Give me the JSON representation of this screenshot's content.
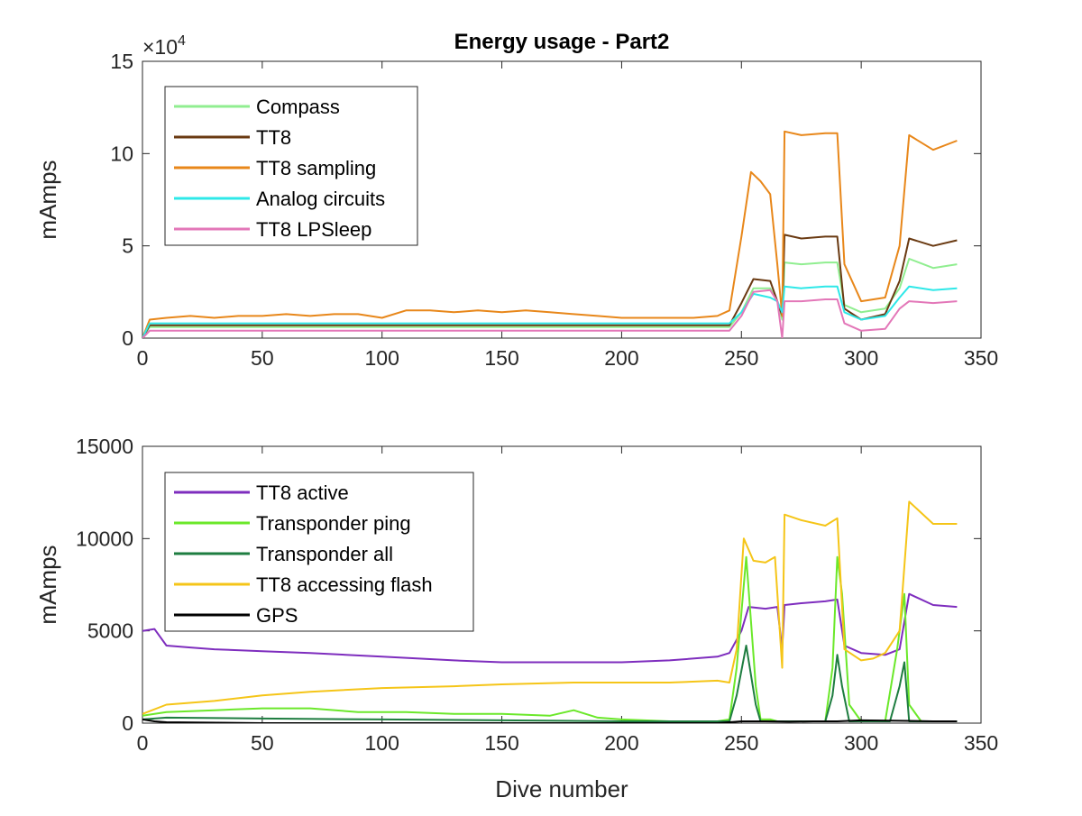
{
  "chart_data": [
    {
      "type": "line",
      "title": "Energy usage - Part2",
      "xlabel": "",
      "ylabel": "mAmps",
      "xlim": [
        0,
        350
      ],
      "ylim": [
        0,
        150000
      ],
      "y_exponent_label": "×10",
      "y_exponent_power": "4",
      "xticks": [
        "0",
        "50",
        "100",
        "150",
        "200",
        "250",
        "300",
        "350"
      ],
      "yticks": [
        "0",
        "5",
        "10",
        "15"
      ],
      "legend_position": "top-left",
      "grid": false,
      "series": [
        {
          "name": "Compass",
          "color": "#90EE90",
          "x": [
            0,
            3,
            245,
            250,
            255,
            262,
            265,
            267,
            268,
            275,
            285,
            290,
            293,
            300,
            310,
            316,
            320,
            330,
            340
          ],
          "y": [
            0,
            6000,
            6000,
            14000,
            27000,
            27000,
            20000,
            10000,
            41000,
            40000,
            41000,
            41000,
            18000,
            14000,
            16000,
            27000,
            43000,
            38000,
            40000
          ]
        },
        {
          "name": "TT8",
          "color": "#6A3A12",
          "x": [
            0,
            3,
            245,
            250,
            255,
            262,
            265,
            267,
            268,
            275,
            285,
            290,
            293,
            300,
            310,
            316,
            320,
            330,
            340
          ],
          "y": [
            0,
            7000,
            7000,
            19000,
            32000,
            31000,
            20000,
            12000,
            56000,
            54000,
            55000,
            55000,
            16000,
            10000,
            13000,
            31000,
            54000,
            50000,
            53000
          ]
        },
        {
          "name": "TT8 sampling",
          "color": "#E8871A",
          "x": [
            0,
            3,
            10,
            20,
            30,
            40,
            50,
            60,
            70,
            80,
            90,
            100,
            110,
            120,
            130,
            140,
            150,
            160,
            170,
            180,
            190,
            200,
            210,
            220,
            230,
            240,
            245,
            250,
            254,
            258,
            262,
            265,
            267,
            268,
            275,
            285,
            290,
            293,
            300,
            310,
            316,
            320,
            330,
            340
          ],
          "y": [
            0,
            10000,
            11000,
            12000,
            11000,
            12000,
            12000,
            13000,
            12000,
            13000,
            13000,
            11000,
            15000,
            15000,
            14000,
            15000,
            14000,
            15000,
            14000,
            13000,
            12000,
            11000,
            11000,
            11000,
            11000,
            12000,
            15000,
            55000,
            90000,
            85000,
            78000,
            40000,
            12000,
            112000,
            110000,
            111000,
            111000,
            40000,
            20000,
            22000,
            50000,
            110000,
            102000,
            107000
          ]
        },
        {
          "name": "Analog circuits",
          "color": "#2EE8E8",
          "x": [
            0,
            3,
            245,
            250,
            255,
            262,
            265,
            267,
            268,
            275,
            285,
            290,
            293,
            300,
            310,
            316,
            320,
            330,
            340
          ],
          "y": [
            0,
            8000,
            8000,
            14000,
            24000,
            22000,
            20000,
            14000,
            28000,
            27000,
            28000,
            28000,
            14000,
            10000,
            12000,
            22000,
            28000,
            26000,
            27000
          ]
        },
        {
          "name": "TT8 LPSleep",
          "color": "#E377B8",
          "x": [
            0,
            3,
            245,
            250,
            255,
            262,
            265,
            267,
            268,
            275,
            285,
            290,
            293,
            300,
            310,
            316,
            320,
            330,
            340
          ],
          "y": [
            0,
            4000,
            4000,
            12000,
            25000,
            26000,
            20000,
            0,
            20000,
            20000,
            21000,
            21000,
            8000,
            4000,
            5000,
            16000,
            20000,
            19000,
            20000
          ]
        }
      ]
    },
    {
      "type": "line",
      "title": "",
      "xlabel": "Dive number",
      "ylabel": "mAmps",
      "xlim": [
        0,
        350
      ],
      "ylim": [
        0,
        15000
      ],
      "xticks": [
        "0",
        "50",
        "100",
        "150",
        "200",
        "250",
        "300",
        "350"
      ],
      "yticks": [
        "0",
        "5000",
        "10000",
        "15000"
      ],
      "legend_position": "top-left",
      "grid": false,
      "series": [
        {
          "name": "TT8 active",
          "color": "#7E2DBE",
          "x": [
            0,
            5,
            10,
            20,
            30,
            50,
            70,
            100,
            130,
            150,
            180,
            200,
            220,
            240,
            245,
            250,
            253,
            260,
            265,
            267,
            268,
            275,
            285,
            290,
            293,
            300,
            310,
            316,
            320,
            330,
            340
          ],
          "y": [
            5000,
            5100,
            4200,
            4100,
            4000,
            3900,
            3800,
            3600,
            3400,
            3300,
            3300,
            3300,
            3400,
            3600,
            3800,
            5000,
            6300,
            6200,
            6300,
            4000,
            6400,
            6500,
            6600,
            6700,
            4200,
            3800,
            3700,
            4000,
            7000,
            6400,
            6300
          ]
        },
        {
          "name": "Transponder ping",
          "color": "#6BE82A",
          "x": [
            0,
            10,
            30,
            50,
            70,
            90,
            110,
            130,
            150,
            170,
            180,
            190,
            200,
            220,
            240,
            245,
            248,
            252,
            256,
            258,
            262,
            265,
            285,
            288,
            290,
            292,
            295,
            300,
            310,
            315,
            318,
            320,
            325,
            340
          ],
          "y": [
            400,
            600,
            700,
            800,
            800,
            600,
            600,
            500,
            500,
            400,
            700,
            300,
            200,
            100,
            100,
            200,
            3000,
            9000,
            2000,
            200,
            200,
            100,
            100,
            3000,
            9000,
            7000,
            1000,
            100,
            100,
            4000,
            7000,
            1000,
            100,
            100
          ]
        },
        {
          "name": "Transponder all",
          "color": "#1E7D40",
          "x": [
            0,
            10,
            50,
            100,
            150,
            200,
            245,
            248,
            252,
            256,
            258,
            285,
            288,
            290,
            292,
            295,
            312,
            316,
            318,
            320,
            340
          ],
          "y": [
            200,
            300,
            250,
            200,
            150,
            100,
            100,
            1500,
            4200,
            1000,
            100,
            100,
            1500,
            3700,
            2000,
            100,
            100,
            2000,
            3300,
            100,
            100
          ]
        },
        {
          "name": "TT8 accessing flash",
          "color": "#F5C518",
          "x": [
            0,
            10,
            30,
            50,
            70,
            100,
            130,
            150,
            180,
            200,
            220,
            240,
            245,
            248,
            251,
            255,
            260,
            264,
            267,
            268,
            275,
            285,
            290,
            293,
            300,
            305,
            310,
            316,
            320,
            330,
            340
          ],
          "y": [
            500,
            1000,
            1200,
            1500,
            1700,
            1900,
            2000,
            2100,
            2200,
            2200,
            2200,
            2300,
            2200,
            4000,
            10000,
            8800,
            8700,
            9000,
            3000,
            11300,
            11000,
            10700,
            11100,
            4000,
            3400,
            3500,
            3800,
            5000,
            12000,
            10800,
            10800
          ]
        },
        {
          "name": "GPS",
          "color": "#000000",
          "x": [
            0,
            5,
            10,
            50,
            100,
            150,
            200,
            240,
            245,
            250,
            260,
            270,
            280,
            290,
            300,
            320,
            330,
            340
          ],
          "y": [
            200,
            100,
            50,
            0,
            0,
            0,
            0,
            0,
            50,
            100,
            100,
            80,
            100,
            100,
            150,
            120,
            100,
            100
          ]
        }
      ]
    }
  ]
}
